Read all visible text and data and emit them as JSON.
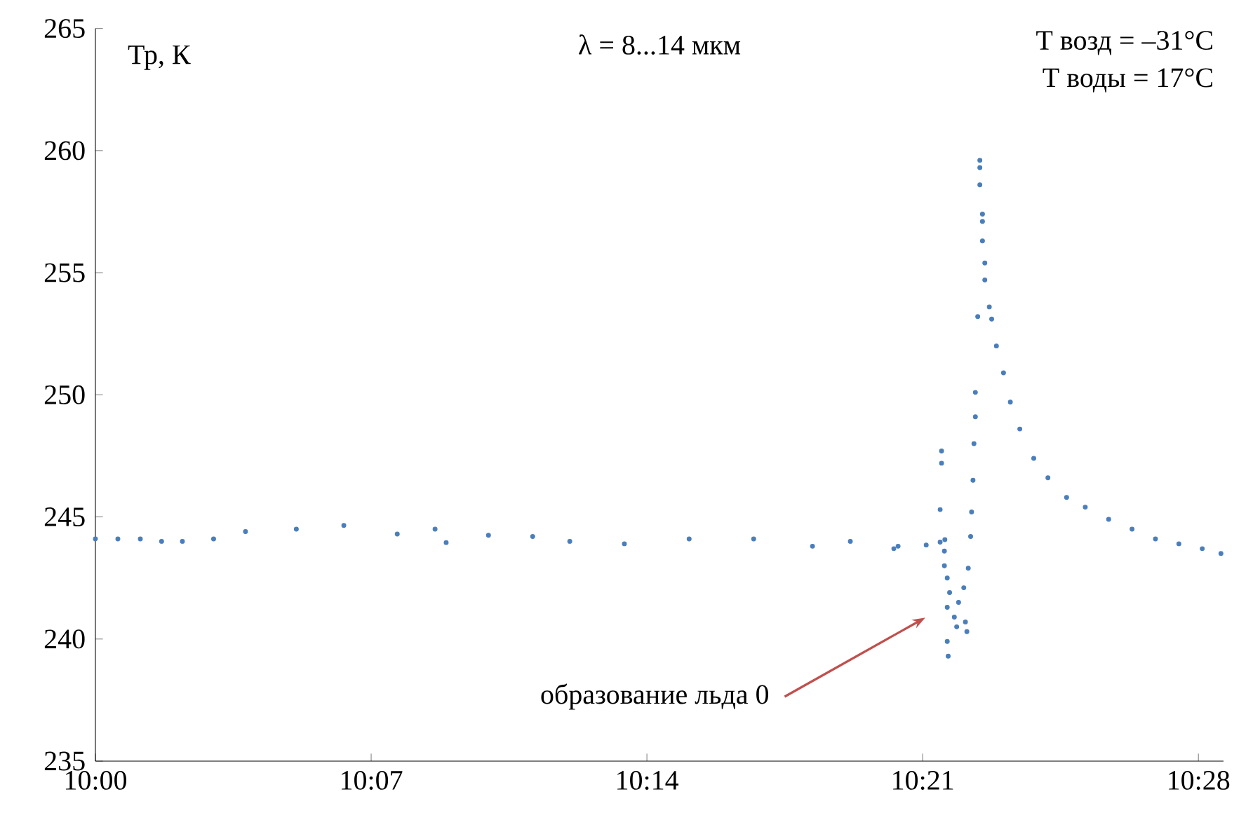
{
  "chart_data": {
    "type": "scatter",
    "title": "λ = 8...14 мкм",
    "ylabel": "Тр, К",
    "x": [
      10.0,
      10.0095,
      10.019,
      10.028,
      10.0368,
      10.05,
      10.0635,
      10.085,
      10.1051,
      10.1277,
      10.1437,
      10.1484,
      10.1663,
      10.185,
      10.2007,
      10.2238,
      10.2512,
      10.2785,
      10.3034,
      10.3194,
      10.3378,
      10.3396,
      10.3515,
      10.3574,
      10.3594,
      10.358,
      10.358,
      10.3574,
      10.3592,
      10.3592,
      10.3604,
      10.3614,
      10.3604,
      10.3604,
      10.3608,
      10.3634,
      10.3644,
      10.3652,
      10.3674,
      10.3681,
      10.3687,
      10.3693,
      10.3703,
      10.3707,
      10.3713,
      10.3717,
      10.3723,
      10.3723,
      10.3733,
      10.3763,
      10.3763,
      10.3753,
      10.3753,
      10.3753,
      10.3742,
      10.3742,
      10.3742,
      10.3782,
      10.3792,
      10.3812,
      10.3842,
      10.3871,
      10.3911,
      10.397,
      10.403,
      10.4109,
      10.4188,
      10.4287,
      10.4386,
      10.4485,
      10.4584,
      10.4683,
      10.4762
    ],
    "values": [
      244.1,
      244.1,
      244.1,
      244.0,
      244.0,
      244.1,
      244.4,
      244.5,
      244.65,
      244.3,
      244.5,
      243.95,
      244.25,
      244.2,
      244.0,
      243.9,
      244.1,
      244.1,
      243.8,
      244.0,
      243.7,
      243.8,
      243.85,
      243.97,
      244.07,
      247.7,
      247.2,
      245.3,
      243.6,
      243.0,
      242.5,
      241.9,
      241.3,
      239.9,
      239.3,
      240.9,
      240.5,
      241.5,
      242.1,
      240.7,
      240.3,
      242.9,
      244.2,
      245.2,
      246.5,
      248.0,
      249.1,
      250.1,
      253.2,
      254.7,
      255.4,
      256.3,
      257.1,
      257.4,
      258.6,
      259.3,
      259.6,
      253.6,
      253.1,
      252.0,
      250.9,
      249.7,
      248.6,
      247.4,
      246.6,
      245.8,
      245.4,
      244.9,
      244.5,
      244.1,
      243.9,
      243.7,
      243.5
    ],
    "color": "#4a7ebb",
    "marker": "circle",
    "xlim": [
      10.0,
      10.4773
    ],
    "ylim": [
      235,
      265
    ],
    "xticks": [
      {
        "value": 10.0,
        "label": "10:00"
      },
      {
        "value": 10.116667,
        "label": "10:07"
      },
      {
        "value": 10.233333,
        "label": "10:14"
      },
      {
        "value": 10.35,
        "label": "10:21"
      },
      {
        "value": 10.466667,
        "label": "10:28"
      }
    ],
    "yticks": [
      235,
      240,
      245,
      250,
      255,
      260,
      265
    ],
    "grid": false,
    "annotations": [
      "образование льда 0",
      "T возд = –31°C",
      "T воды = 17°C"
    ]
  }
}
